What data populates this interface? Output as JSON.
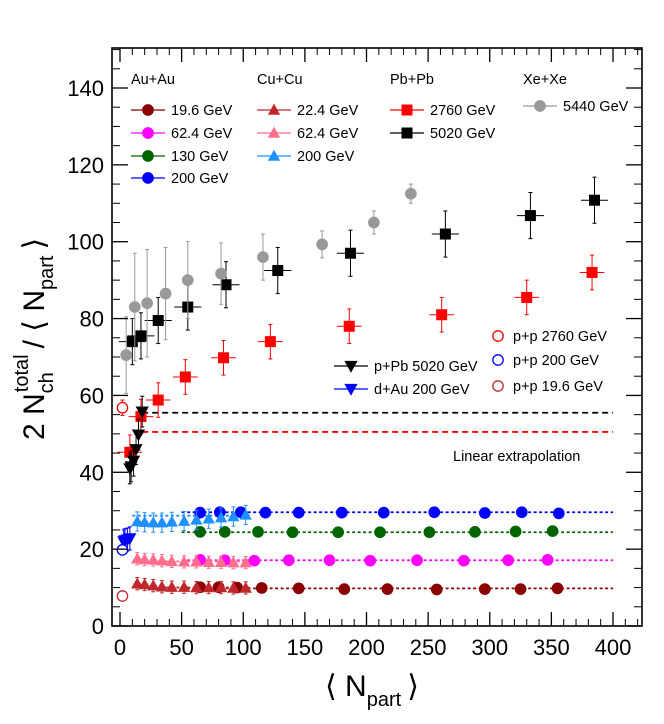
{
  "chart_data": {
    "type": "scatter",
    "title": "",
    "xlabel": "⟨ N_part ⟩",
    "ylabel": "2 N_ch^total / ⟨ N_part ⟩",
    "axis_labels": {
      "x_main": "⟨ N",
      "x_sub": "part",
      "x_close": "⟩",
      "y_coef": "2 N",
      "y_sub": "ch",
      "y_sup": "total",
      "y_rest": "/ ⟨ N",
      "y_sub2": "part",
      "y_close": "⟩"
    },
    "xlim": [
      -10,
      420
    ],
    "ylim": [
      0,
      150
    ],
    "xticks": [
      0,
      50,
      100,
      150,
      200,
      250,
      300,
      350,
      400
    ],
    "yticks": [
      0,
      20,
      40,
      60,
      80,
      100,
      120,
      140
    ],
    "grid": false,
    "legend_groups": [
      "Au+Au",
      "Cu+Cu",
      "Pb+Pb",
      "Xe+Xe"
    ],
    "annotation": "Linear extrapolation",
    "series": [
      {
        "name": "19.6 GeV",
        "group": "Au+Au",
        "marker": "circle",
        "color": "#8b0000",
        "fill": true,
        "points": [
          [
            355,
            9.8
          ],
          [
            325,
            9.6
          ],
          [
            296,
            9.6
          ],
          [
            257,
            9.5
          ],
          [
            217,
            9.6
          ],
          [
            182,
            9.6
          ],
          [
            145,
            9.8
          ],
          [
            115,
            9.9
          ],
          [
            95,
            10
          ],
          [
            80,
            10.1
          ],
          [
            65,
            10.1
          ]
        ],
        "xerr": 4,
        "yerr": 0.6
      },
      {
        "name": "62.4 GeV",
        "group": "Au+Au",
        "marker": "circle",
        "color": "#ff00ff",
        "fill": true,
        "points": [
          [
            347,
            17.2
          ],
          [
            315,
            17.1
          ],
          [
            279,
            17.0
          ],
          [
            241,
            17.1
          ],
          [
            203,
            17.0
          ],
          [
            170,
            17.1
          ],
          [
            137,
            17.1
          ],
          [
            109,
            17.0
          ],
          [
            85,
            17.1
          ],
          [
            65,
            17.2
          ]
        ],
        "xerr": 4,
        "yerr": 0.7
      },
      {
        "name": "130 GeV",
        "group": "Au+Au",
        "marker": "circle",
        "color": "#006400",
        "fill": true,
        "points": [
          [
            351,
            24.7
          ],
          [
            321,
            24.6
          ],
          [
            288,
            24.5
          ],
          [
            251,
            24.4
          ],
          [
            211,
            24.4
          ],
          [
            177,
            24.4
          ],
          [
            140,
            24.4
          ],
          [
            112,
            24.5
          ],
          [
            85,
            24.5
          ],
          [
            65,
            24.5
          ]
        ],
        "xerr": 4,
        "yerr": 1.0
      },
      {
        "name": "200 GeV",
        "group": "Au+Au",
        "marker": "circle",
        "color": "#0000ff",
        "fill": true,
        "points": [
          [
            356,
            29.3
          ],
          [
            326,
            29.6
          ],
          [
            296,
            29.4
          ],
          [
            255,
            29.6
          ],
          [
            214,
            29.5
          ],
          [
            180,
            29.5
          ],
          [
            145,
            29.5
          ],
          [
            118,
            29.5
          ],
          [
            98,
            29.6
          ],
          [
            81,
            29.6
          ],
          [
            65,
            29.5
          ]
        ],
        "xerr": 4,
        "yerr": 1.0
      },
      {
        "name": "22.4 GeV",
        "group": "Cu+Cu",
        "marker": "triangle",
        "color": "#c0282d",
        "fill": true,
        "points": [
          [
            102,
            9.9
          ],
          [
            92,
            9.9
          ],
          [
            82,
            10.0
          ],
          [
            72,
            10.0
          ],
          [
            62,
            10.0
          ],
          [
            52,
            10.1
          ],
          [
            42,
            10.1
          ],
          [
            34,
            10.2
          ],
          [
            27,
            10.5
          ],
          [
            20,
            10.8
          ],
          [
            14,
            11.0
          ]
        ],
        "xerr": 3,
        "yerr": 1.6
      },
      {
        "name": "62.4 GeV",
        "group": "Cu+Cu",
        "marker": "triangle",
        "color": "#ff6e8c",
        "fill": true,
        "points": [
          [
            102,
            16.5
          ],
          [
            92,
            16.5
          ],
          [
            82,
            16.6
          ],
          [
            72,
            16.6
          ],
          [
            62,
            16.7
          ],
          [
            52,
            16.7
          ],
          [
            42,
            16.8
          ],
          [
            34,
            17.0
          ],
          [
            27,
            17.2
          ],
          [
            20,
            17.3
          ],
          [
            14,
            17.5
          ]
        ],
        "xerr": 3,
        "yerr": 1.6
      },
      {
        "name": "200 GeV",
        "group": "Cu+Cu",
        "marker": "triangle",
        "color": "#1e90ff",
        "fill": true,
        "points": [
          [
            102,
            28.9
          ],
          [
            92,
            28.5
          ],
          [
            82,
            28.2
          ],
          [
            72,
            27.9
          ],
          [
            62,
            27.6
          ],
          [
            52,
            27.3
          ],
          [
            42,
            27.1
          ],
          [
            34,
            26.9
          ],
          [
            27,
            26.9
          ],
          [
            20,
            27.0
          ],
          [
            14,
            27.2
          ]
        ],
        "xerr": 3,
        "yerr": 2.5
      },
      {
        "name": "2760 GeV",
        "group": "Pb+Pb",
        "marker": "square",
        "color": "#ff0000",
        "fill": true,
        "points": [
          [
            383,
            92
          ],
          [
            330,
            85.5
          ],
          [
            261,
            81
          ],
          [
            186,
            78
          ],
          [
            122,
            74
          ],
          [
            84,
            69.8
          ],
          [
            53,
            64.8
          ],
          [
            31,
            58.8
          ],
          [
            17,
            54.5
          ],
          [
            8,
            45.2
          ]
        ],
        "xerr": 10,
        "yerr": 4.5
      },
      {
        "name": "5020 GeV",
        "group": "Pb+Pb",
        "marker": "square",
        "color": "#000000",
        "fill": true,
        "points": [
          [
            385,
            110.8
          ],
          [
            333,
            106.8
          ],
          [
            264,
            102
          ],
          [
            187,
            97
          ],
          [
            128,
            92.5
          ],
          [
            86,
            88.8
          ],
          [
            55,
            83
          ],
          [
            31,
            79.5
          ],
          [
            17,
            75.5
          ],
          [
            10,
            74
          ]
        ],
        "xerr": 11,
        "yerr": 6
      },
      {
        "name": "5440 GeV",
        "group": "Xe+Xe",
        "marker": "circle",
        "color": "#999999",
        "fill": true,
        "points": [
          [
            236,
            112.5
          ],
          [
            206,
            105
          ],
          [
            164,
            99.3
          ],
          [
            116,
            96
          ],
          [
            82,
            91.7
          ],
          [
            55,
            90
          ],
          [
            37,
            86.5
          ],
          [
            22,
            84
          ],
          [
            12,
            83
          ],
          [
            5,
            70.5
          ]
        ],
        "xerr": 2,
        "yerr": 3.5,
        "yerr_list": [
          2.5,
          3,
          3.5,
          6,
          8,
          10,
          12,
          14,
          14,
          10
        ]
      },
      {
        "name": "p+Pb 5020 GeV",
        "group": "small",
        "marker": "triangle-down",
        "color": "#000000",
        "fill": true,
        "points": [
          [
            18,
            55.8
          ],
          [
            15,
            49.8
          ],
          [
            13,
            46
          ],
          [
            11,
            43
          ],
          [
            9,
            41.5
          ],
          [
            8,
            41
          ]
        ],
        "xerr": 1,
        "yerr": 4
      },
      {
        "name": "d+Au 200 GeV",
        "group": "small",
        "marker": "triangle-down",
        "color": "#0000ff",
        "fill": true,
        "points": [
          [
            8,
            22.8
          ],
          [
            6,
            22.5
          ],
          [
            4,
            22.3
          ],
          [
            3,
            22
          ]
        ],
        "xerr": 1,
        "yerr": 3
      },
      {
        "name": "p+p 2760 GeV",
        "group": "pp",
        "marker": "circle",
        "color": "#ff0000",
        "fill": false,
        "points": [
          [
            2,
            56.8
          ]
        ],
        "xerr": 0,
        "yerr": 2
      },
      {
        "name": "p+p 200 GeV",
        "group": "pp",
        "marker": "circle",
        "color": "#0000ff",
        "fill": false,
        "points": [
          [
            2,
            19.8
          ]
        ],
        "xerr": 0,
        "yerr": 1
      },
      {
        "name": "p+p 19.6 GeV",
        "group": "pp",
        "marker": "circle",
        "color": "#c0282d",
        "fill": false,
        "points": [
          [
            2,
            7.8
          ]
        ],
        "xerr": 0,
        "yerr": 0.5
      }
    ],
    "extrapolation_lines": [
      {
        "color": "#000000",
        "y": 55.5,
        "x_from": 18,
        "x_to": 400
      },
      {
        "color": "#ff0000",
        "y": 50.5,
        "x_from": 18,
        "x_to": 400
      },
      {
        "color": "#0000ff",
        "y": 29.6,
        "x_from": 50,
        "x_to": 400
      },
      {
        "color": "#006400",
        "y": 24.4,
        "x_from": 50,
        "x_to": 400
      },
      {
        "color": "#ff00ff",
        "y": 17.1,
        "x_from": 50,
        "x_to": 400
      },
      {
        "color": "#8b0000",
        "y": 9.8,
        "x_from": 50,
        "x_to": 400
      },
      {
        "color": "#1e90ff",
        "y": 28.7,
        "x_from": 10,
        "x_to": 105
      },
      {
        "color": "#ff6e8c",
        "y": 16.8,
        "x_from": 10,
        "x_to": 105
      },
      {
        "color": "#c0282d",
        "y": 10.0,
        "x_from": 10,
        "x_to": 105
      }
    ]
  }
}
